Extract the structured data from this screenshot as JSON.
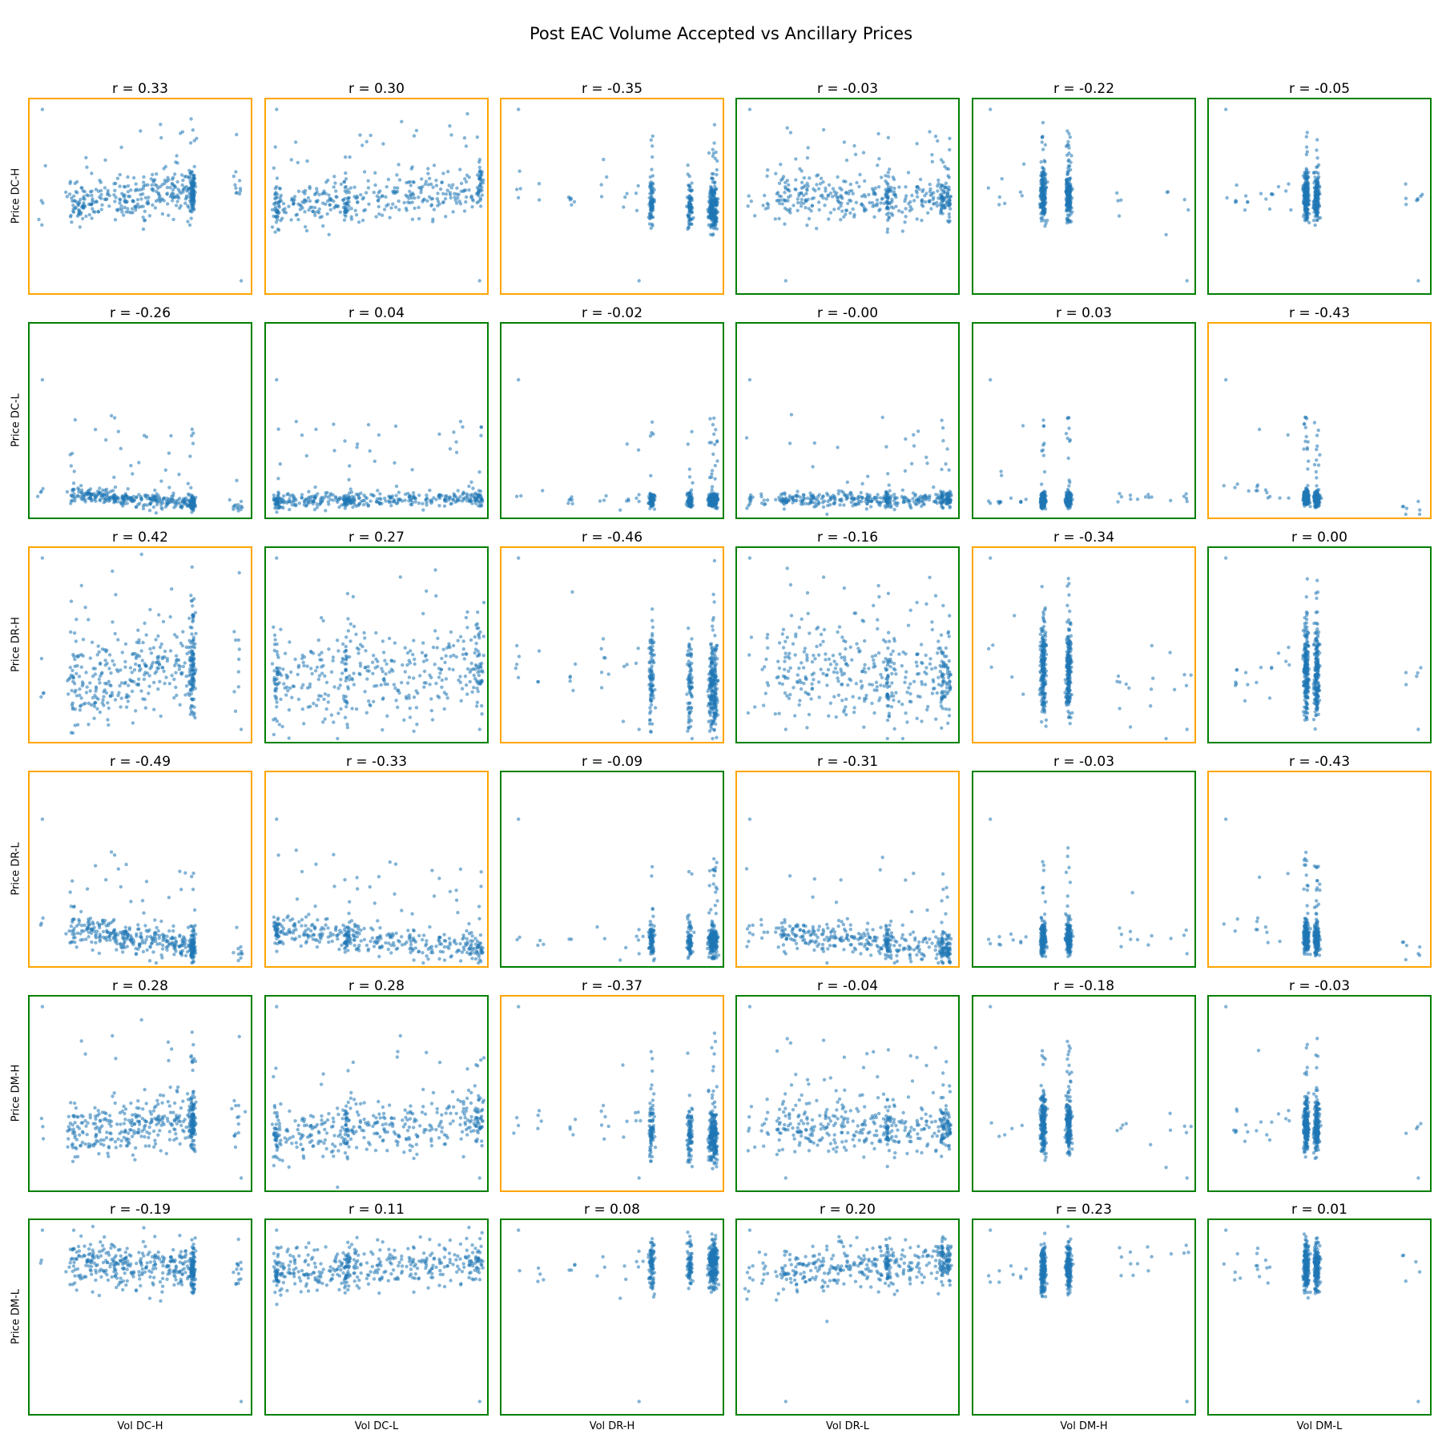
{
  "chart_data": {
    "type": "scatter",
    "title": "Post EAC Volume Accepted vs Ancillary Prices",
    "x_labels": [
      "Vol DC-H",
      "Vol DC-L",
      "Vol DR-H",
      "Vol DR-L",
      "Vol DM-H",
      "Vol DM-L"
    ],
    "y_labels": [
      "Price DC-H",
      "Price DC-L",
      "Price DR-H",
      "Price DR-L",
      "Price DM-H",
      "Price DM-L"
    ],
    "point_color": "#1f77b4",
    "border_colors": {
      "strong": "#ffa500",
      "weak": "#008000"
    },
    "highlight_rule": "orange border when |r| >= 0.3, green otherwise",
    "correlations": [
      [
        "r = 0.33",
        "r = 0.30",
        "r = -0.35",
        "r = -0.03",
        "r = -0.22",
        "r = -0.05"
      ],
      [
        "r = -0.26",
        "r = 0.04",
        "r = -0.02",
        "r = -0.00",
        "r = 0.03",
        "r = -0.43"
      ],
      [
        "r = 0.42",
        "r = 0.27",
        "r = -0.46",
        "r = -0.16",
        "r = -0.34",
        "r = 0.00"
      ],
      [
        "r = -0.49",
        "r = -0.33",
        "r = -0.09",
        "r = -0.31",
        "r = -0.03",
        "r = -0.43"
      ],
      [
        "r = 0.28",
        "r = 0.28",
        "r = -0.37",
        "r = -0.04",
        "r = -0.18",
        "r = -0.03"
      ],
      [
        "r = -0.19",
        "r = 0.11",
        "r = 0.08",
        "r = 0.20",
        "r = 0.23",
        "r = 0.01"
      ]
    ],
    "r_values": [
      [
        0.33,
        0.3,
        -0.35,
        -0.03,
        -0.22,
        -0.05
      ],
      [
        -0.26,
        0.04,
        -0.02,
        -0.0,
        0.03,
        -0.43
      ],
      [
        0.42,
        0.27,
        -0.46,
        -0.16,
        -0.34,
        0.0
      ],
      [
        -0.49,
        -0.33,
        -0.09,
        -0.31,
        -0.03,
        -0.43
      ],
      [
        0.28,
        0.28,
        -0.37,
        -0.04,
        -0.18,
        -0.03
      ],
      [
        -0.19,
        0.11,
        0.08,
        0.2,
        0.23,
        0.01
      ]
    ],
    "axis_ticks": "hidden",
    "grid": false
  }
}
